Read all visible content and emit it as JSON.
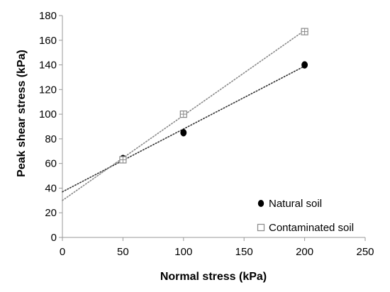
{
  "chart_data": {
    "type": "scatter",
    "title": "",
    "xlabel": "Normal stress (kPa)",
    "ylabel": "Peak shear stress (kPa)",
    "xlim": [
      0,
      250
    ],
    "ylim": [
      0,
      180
    ],
    "xticks": [
      0,
      50,
      100,
      150,
      200,
      250
    ],
    "yticks": [
      0,
      20,
      40,
      60,
      80,
      100,
      120,
      140,
      160,
      180
    ],
    "grid": false,
    "legend_position": "bottom-right",
    "series": [
      {
        "name": "Natural soil",
        "marker": "filled-circle",
        "color": "#000000",
        "x": [
          50,
          100,
          200
        ],
        "y": [
          64,
          85,
          140
        ],
        "trendline": {
          "style": "dotted",
          "color": "#333333",
          "intercept": 37,
          "slope": 0.51
        }
      },
      {
        "name": "Contaminated soil",
        "marker": "open-square",
        "color": "#888888",
        "x": [
          50,
          100,
          200
        ],
        "y": [
          63,
          100,
          167
        ],
        "trendline": {
          "style": "dotted",
          "color": "#888888",
          "intercept": 30,
          "slope": 0.69
        }
      }
    ]
  }
}
